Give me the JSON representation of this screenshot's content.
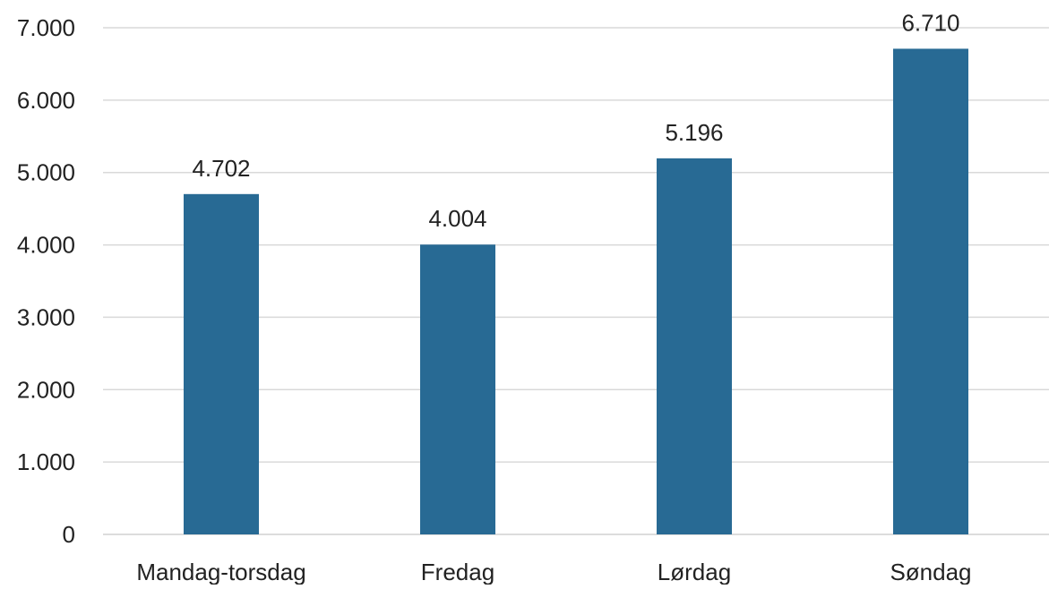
{
  "chart_data": {
    "type": "bar",
    "title": "",
    "xlabel": "",
    "ylabel": "",
    "categories": [
      "Mandag-torsdag",
      "Fredag",
      "Lørdag",
      "Søndag"
    ],
    "values": [
      4702,
      4004,
      5196,
      6710
    ],
    "value_labels": [
      "4.702",
      "4.004",
      "5.196",
      "6.710"
    ],
    "ylim": [
      0,
      7000
    ],
    "yticks": [
      0,
      1000,
      2000,
      3000,
      4000,
      5000,
      6000,
      7000
    ],
    "ytick_labels": [
      "0",
      "1.000",
      "2.000",
      "3.000",
      "4.000",
      "5.000",
      "6.000",
      "7.000"
    ],
    "grid": true,
    "legend": "none",
    "bar_color": "#286a94"
  }
}
